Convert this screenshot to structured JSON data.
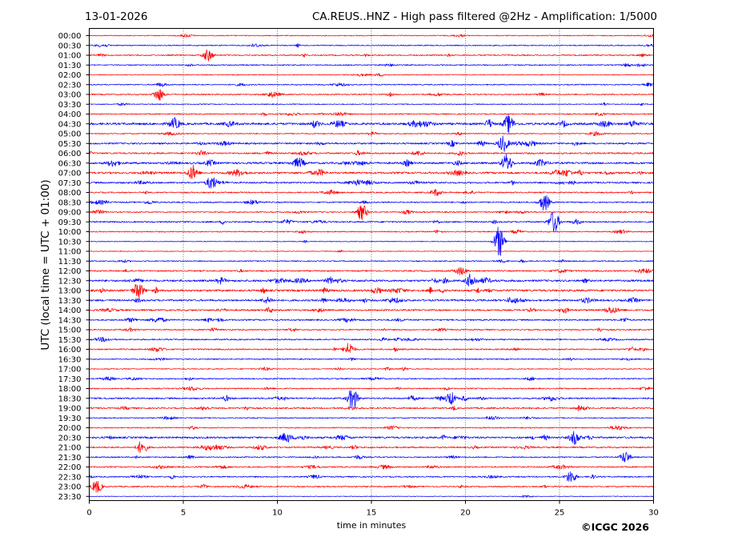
{
  "header": {
    "date": "13-01-2026",
    "station_title": "CA.REUS..HNZ - High pass filtered @2Hz - Amplification: 1/5000"
  },
  "footer": {
    "copyright": "©ICGC 2026"
  },
  "chart_data": {
    "type": "line",
    "subtype": "helicorder",
    "xlabel": "time in minutes",
    "ylabel": "UTC (local time = UTC + 01:00)",
    "xlim": [
      0,
      30
    ],
    "x_ticks": [
      0,
      5,
      10,
      15,
      20,
      25,
      30
    ],
    "vertical_gridlines_at": [
      5,
      10,
      15,
      20,
      25
    ],
    "grid": "vertical dotted",
    "trace_colors": [
      "#ff0000",
      "#0000ff"
    ],
    "trace_labels": [
      "00:00",
      "00:30",
      "01:00",
      "01:30",
      "02:00",
      "02:30",
      "03:00",
      "03:30",
      "04:00",
      "04:30",
      "05:00",
      "05:30",
      "06:00",
      "06:30",
      "07:00",
      "07:30",
      "08:00",
      "08:30",
      "09:00",
      "09:30",
      "10:00",
      "10:30",
      "11:00",
      "11:30",
      "12:00",
      "12:30",
      "13:00",
      "13:30",
      "14:00",
      "14:30",
      "15:00",
      "15:30",
      "16:00",
      "16:30",
      "17:00",
      "17:30",
      "18:00",
      "18:30",
      "19:00",
      "19:30",
      "20:00",
      "20:30",
      "21:00",
      "21:30",
      "22:00",
      "22:30",
      "23:00",
      "23:30"
    ],
    "trace_activity": [
      0.2,
      0.25,
      0.35,
      0.3,
      0.15,
      0.3,
      0.35,
      0.2,
      0.35,
      0.9,
      0.3,
      0.6,
      0.55,
      0.8,
      0.75,
      0.6,
      0.4,
      0.4,
      0.35,
      0.5,
      0.3,
      0.1,
      0.1,
      0.3,
      0.45,
      0.8,
      0.8,
      0.7,
      0.6,
      0.5,
      0.4,
      0.4,
      0.45,
      0.3,
      0.25,
      0.35,
      0.35,
      0.55,
      0.5,
      0.25,
      0.3,
      0.7,
      0.5,
      0.35,
      0.4,
      0.4,
      0.35,
      0.05
    ],
    "events": [
      {
        "trace": 19,
        "minute": 24.7,
        "amplitude": 1.6
      },
      {
        "trace": 21,
        "minute": 21.8,
        "amplitude": 2.2
      },
      {
        "trace": 17,
        "minute": 24.2,
        "amplitude": 1.2
      },
      {
        "trace": 18,
        "minute": 14.5,
        "amplitude": 1.1
      },
      {
        "trace": 37,
        "minute": 14.0,
        "amplitude": 1.5
      },
      {
        "trace": 32,
        "minute": 13.8,
        "amplitude": 0.9
      },
      {
        "trace": 13,
        "minute": 22.2,
        "amplitude": 1.2
      },
      {
        "trace": 11,
        "minute": 22.0,
        "amplitude": 1.1
      },
      {
        "trace": 9,
        "minute": 22.3,
        "amplitude": 1.2
      },
      {
        "trace": 14,
        "minute": 5.5,
        "amplitude": 1.0
      },
      {
        "trace": 15,
        "minute": 6.5,
        "amplitude": 0.9
      },
      {
        "trace": 6,
        "minute": 3.7,
        "amplitude": 0.9
      },
      {
        "trace": 2,
        "minute": 6.3,
        "amplitude": 0.8
      },
      {
        "trace": 26,
        "minute": 2.6,
        "amplitude": 0.9
      },
      {
        "trace": 42,
        "minute": 2.8,
        "amplitude": 0.9
      },
      {
        "trace": 46,
        "minute": 0.4,
        "amplitude": 0.9
      },
      {
        "trace": 45,
        "minute": 25.6,
        "amplitude": 0.9
      },
      {
        "trace": 43,
        "minute": 28.5,
        "amplitude": 0.8
      },
      {
        "trace": 41,
        "minute": 25.8,
        "amplitude": 0.9
      },
      {
        "trace": 37,
        "minute": 19.2,
        "amplitude": 0.9
      },
      {
        "trace": 25,
        "minute": 20.3,
        "amplitude": 0.9
      }
    ]
  }
}
